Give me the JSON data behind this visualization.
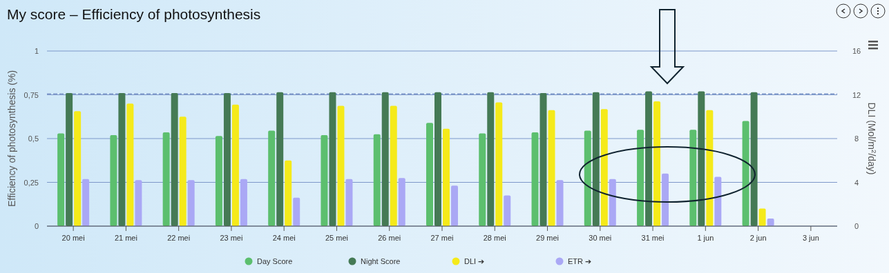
{
  "chart_data": {
    "type": "bar",
    "title": "My score – Efficiency of photosynthesis",
    "ylabel": "Efficiency of photosynthesis (%)",
    "y2label": "DLI (Mol/m$^{2}$/day)",
    "categories": [
      "20 mei",
      "21 mei",
      "22 mei",
      "23 mei",
      "24 mei",
      "25 mei",
      "26 mei",
      "27 mei",
      "28 mei",
      "29 mei",
      "30 mei",
      "31 mei",
      "1 jun",
      "2 jun",
      "3 jun"
    ],
    "series": [
      {
        "name": "Day Score",
        "color": "#5cbf6e",
        "values": [
          0.53,
          0.52,
          0.535,
          0.515,
          0.545,
          0.52,
          0.525,
          0.59,
          0.53,
          0.535,
          0.545,
          0.55,
          0.55,
          0.6,
          null
        ]
      },
      {
        "name": "Night Score",
        "color": "#457a55",
        "values": [
          0.76,
          0.76,
          0.76,
          0.76,
          0.765,
          0.765,
          0.765,
          0.765,
          0.765,
          0.76,
          0.765,
          0.77,
          0.77,
          0.765,
          null
        ]
      },
      {
        "name": "DLI ➔",
        "color": "#f5ea1a",
        "axis": "y2",
        "values": [
          10.5,
          11.2,
          10,
          11.1,
          6,
          11,
          11,
          8.9,
          11.3,
          10.6,
          10.7,
          11.4,
          10.6,
          1.6,
          null
        ]
      },
      {
        "name": "ETR ➔",
        "color": "#aaa8f5",
        "axis": "y2",
        "values": [
          4.3,
          4.2,
          4.2,
          4.3,
          2.6,
          4.3,
          4.4,
          3.7,
          2.8,
          4.2,
          4.3,
          4.8,
          4.5,
          0.7,
          null
        ]
      }
    ],
    "ylim": [
      0,
      1
    ],
    "yticks": [
      0,
      {
        "value": 0.25,
        "label": "0,25"
      },
      {
        "value": 0.5,
        "label": "0,5"
      },
      {
        "value": 0.75,
        "label": "0,75"
      },
      1
    ],
    "y2lim": [
      0,
      16
    ],
    "y2ticks": [
      0,
      4,
      8,
      12,
      16
    ],
    "ref_lines": [
      {
        "axis": "y",
        "value": 0.755,
        "color": "#7d97c9",
        "line_style": "dashed"
      }
    ],
    "grid": "y",
    "legend": "bottom"
  }
}
